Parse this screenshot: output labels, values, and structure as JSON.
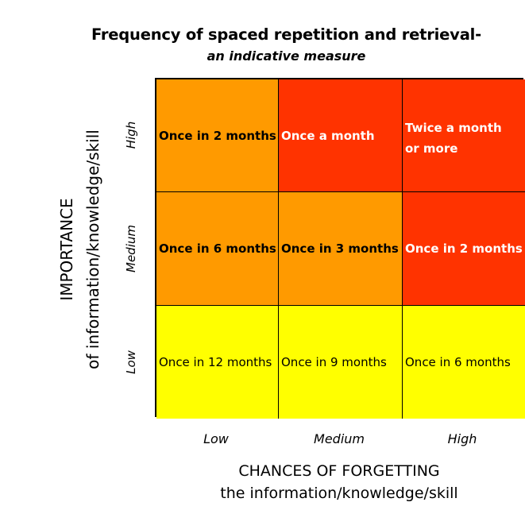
{
  "title": "Frequency of spaced repetition and retrieval-",
  "subtitle": "an indicative measure",
  "y_axis": {
    "label_line1": "IMPORTANCE",
    "label_line2": "of information/knowledge/skill",
    "levels": [
      "High",
      "Medium",
      "Low"
    ]
  },
  "x_axis": {
    "label_line1": "CHANCES OF FORGETTING",
    "label_line2": "the information/knowledge/skill",
    "levels": [
      "Low",
      "Medium",
      "High"
    ]
  },
  "cells": {
    "high_low": "Once in 2 months",
    "high_medium": "Once a month",
    "high_high_line1": "Twice a month",
    "high_high_line2": "or more",
    "medium_low": "Once in 6 months",
    "medium_medium": "Once in 3 months",
    "medium_high": "Once in 2 months",
    "low_low": "Once in 12 months",
    "low_medium": "Once in 9 months",
    "low_high": "Once in 6 months"
  },
  "colors": {
    "orange": "#ff9a00",
    "red": "#ff3300",
    "yellow": "#ffff00"
  }
}
